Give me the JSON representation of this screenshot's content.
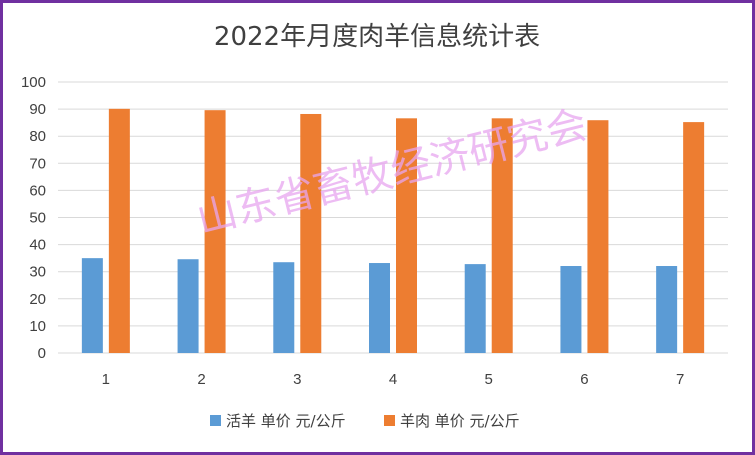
{
  "chart_data": {
    "type": "bar",
    "title": "2022年月度肉羊信息统计表",
    "categories": [
      "1",
      "2",
      "3",
      "4",
      "5",
      "6",
      "7"
    ],
    "series": [
      {
        "name": "活羊 单价 元/公斤",
        "color": "#5b9bd5",
        "values": [
          35,
          34.6,
          33.5,
          33.2,
          32.8,
          32.1,
          32.1
        ]
      },
      {
        "name": "羊肉 单价 元/公斤",
        "color": "#ed7d31",
        "values": [
          90.1,
          89.6,
          88.2,
          86.6,
          86.6,
          85.9,
          85.2
        ]
      }
    ],
    "ylim": [
      0,
      100
    ],
    "yticks": [
      "0",
      "10",
      "20",
      "30",
      "40",
      "50",
      "60",
      "70",
      "80",
      "90",
      "100"
    ],
    "grid": true,
    "legend": "bottom"
  },
  "watermark": "山东省畜牧经济研究会",
  "colors": {
    "border": "#7030a0",
    "grid": "#d9d9d9",
    "text": "#404040"
  }
}
